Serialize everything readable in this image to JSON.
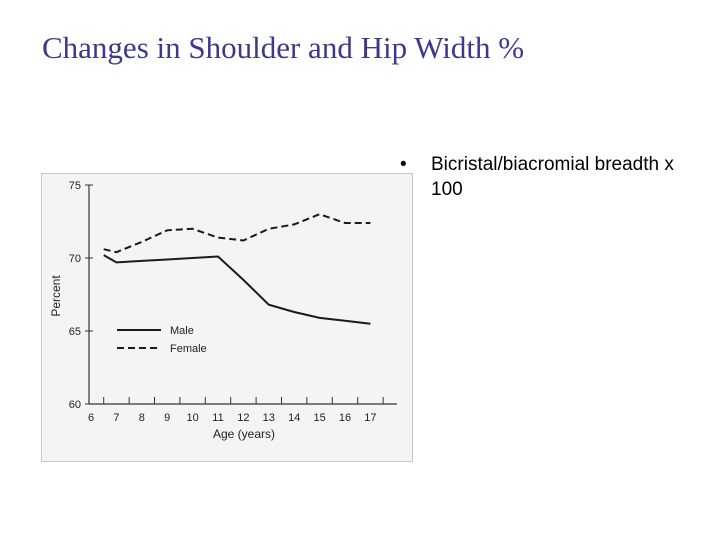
{
  "title": "Changes in Shoulder and Hip Width %",
  "bullet": {
    "text": "Bicristal/biacromial breadth x 100"
  },
  "chart_data": {
    "type": "line",
    "xlabel": "Age (years)",
    "ylabel": "Percent",
    "x": [
      6,
      7,
      8,
      9,
      10,
      11,
      12,
      13,
      14,
      15,
      16,
      17
    ],
    "xlim": [
      6,
      18
    ],
    "ylim": [
      60,
      75
    ],
    "yticks": [
      60,
      65,
      70,
      75
    ],
    "legend_position": "bottom-left",
    "series": [
      {
        "name": "Male",
        "style": "solid",
        "points": [
          [
            6.5,
            70.2
          ],
          [
            7,
            69.7
          ],
          [
            8,
            69.8
          ],
          [
            9,
            69.9
          ],
          [
            10,
            70.0
          ],
          [
            11,
            70.1
          ],
          [
            12,
            68.5
          ],
          [
            13,
            66.8
          ],
          [
            14,
            66.3
          ],
          [
            15,
            65.9
          ],
          [
            16,
            65.7
          ],
          [
            17,
            65.5
          ]
        ]
      },
      {
        "name": "Female",
        "style": "dashed",
        "points": [
          [
            6.5,
            70.6
          ],
          [
            7,
            70.4
          ],
          [
            8,
            71.1
          ],
          [
            9,
            71.9
          ],
          [
            10,
            72.0
          ],
          [
            11,
            71.4
          ],
          [
            12,
            71.2
          ],
          [
            13,
            72.0
          ],
          [
            14,
            72.3
          ],
          [
            15,
            73.0
          ],
          [
            16,
            72.4
          ],
          [
            17,
            72.4
          ]
        ]
      }
    ]
  }
}
